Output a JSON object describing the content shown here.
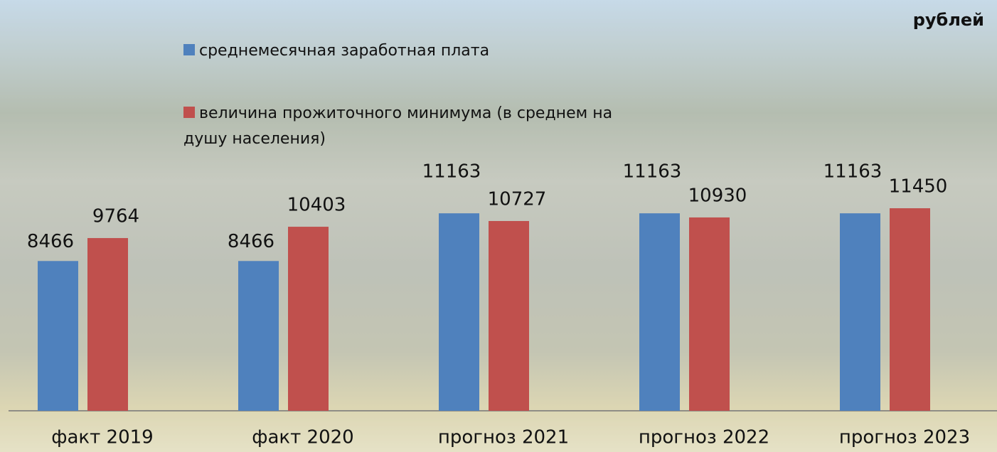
{
  "chart_data": {
    "type": "bar",
    "unit": "рублей",
    "categories": [
      "факт 2019",
      "факт 2020",
      "прогноз 2021",
      "прогноз 2022",
      "прогноз 2023"
    ],
    "series": [
      {
        "name": "среднемесячная заработная плата",
        "color": "#4f81bd",
        "values": [
          8466,
          8466,
          11163,
          11163,
          11163
        ]
      },
      {
        "name": "величина прожиточного минимума (в среднем на душу населения)",
        "color": "#c0504d",
        "values": [
          9764,
          10403,
          10727,
          10930,
          11450
        ]
      }
    ],
    "legend": "top-left"
  }
}
